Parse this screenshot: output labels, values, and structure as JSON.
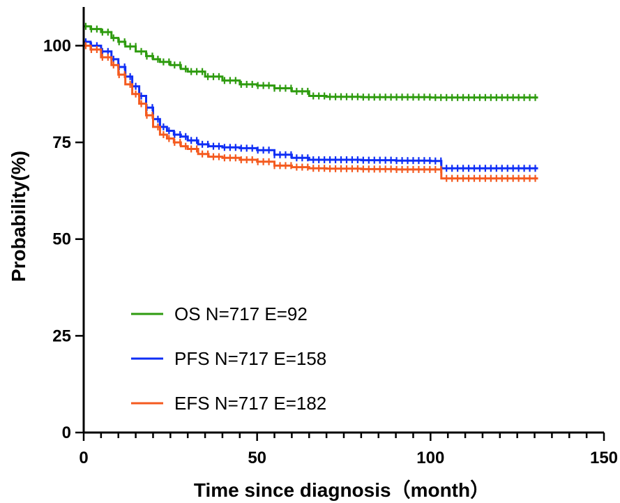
{
  "chart_data": {
    "type": "line",
    "xlabel": "Time since diagnosis（month）",
    "ylabel": "Probability(%)",
    "xlim": [
      0,
      150
    ],
    "ylim": [
      0,
      110
    ],
    "xticks": [
      0,
      50,
      100,
      150
    ],
    "yticks": [
      0,
      25,
      50,
      75,
      100
    ],
    "grid": false,
    "legend_position": "bottom-left",
    "series": [
      {
        "name": "OS N=717 E=92",
        "color": "#2e9b0f",
        "x": [
          0,
          2,
          5,
          8,
          10,
          12,
          15,
          18,
          20,
          22,
          25,
          28,
          30,
          35,
          40,
          45,
          50,
          55,
          60,
          65,
          70,
          80,
          100,
          131
        ],
        "y": [
          105,
          104.3,
          103.5,
          102,
          101,
          99.8,
          98.5,
          97.3,
          96.5,
          95.8,
          95,
          94,
          93.3,
          92,
          91,
          90,
          89.7,
          89,
          88.2,
          87,
          86.8,
          86.7,
          86.6,
          86.6
        ]
      },
      {
        "name": "PFS N=717 E=158",
        "color": "#0f2ef5",
        "x": [
          0,
          2,
          5,
          8,
          10,
          12,
          14,
          16,
          18,
          20,
          22,
          24,
          26,
          28,
          30,
          33,
          36,
          40,
          45,
          50,
          55,
          60,
          65,
          70,
          80,
          90,
          100,
          103,
          103.1,
          131
        ],
        "y": [
          101,
          100,
          98.5,
          96.5,
          94.5,
          92,
          89.5,
          87,
          84,
          81,
          79,
          78,
          77,
          76.5,
          75.5,
          74.5,
          74,
          73.7,
          73.5,
          73,
          71.8,
          71,
          70.5,
          70.5,
          70.4,
          70.3,
          70.2,
          70.2,
          68.3,
          68.3
        ]
      },
      {
        "name": "EFS N=717 E=182",
        "color": "#f45a1f",
        "x": [
          0,
          2,
          5,
          8,
          10,
          12,
          14,
          16,
          18,
          20,
          22,
          24,
          26,
          28,
          30,
          33,
          36,
          40,
          45,
          50,
          55,
          60,
          65,
          70,
          80,
          90,
          100,
          103,
          103.1,
          131
        ],
        "y": [
          100,
          99,
          97,
          95,
          92.5,
          90,
          87.5,
          85,
          82,
          79,
          77,
          76,
          75,
          74,
          73.3,
          72,
          71.3,
          71,
          70.5,
          70,
          69,
          68.6,
          68.3,
          68.2,
          68.1,
          68,
          68,
          68,
          65.7,
          65.7
        ]
      }
    ]
  }
}
